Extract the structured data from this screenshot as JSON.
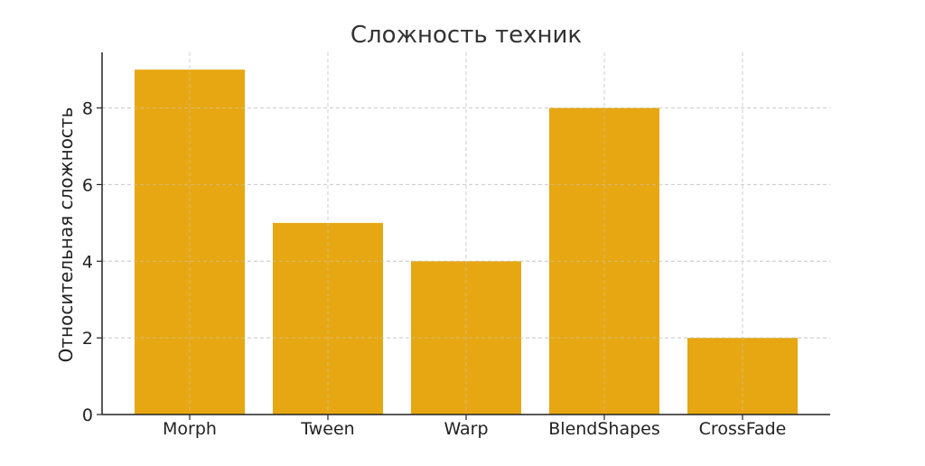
{
  "chart_data": {
    "type": "bar",
    "title": "Сложность техник",
    "xlabel": "",
    "ylabel": "Относительная сложность",
    "categories": [
      "Morph",
      "Tween",
      "Warp",
      "BlendShapes",
      "CrossFade"
    ],
    "values": [
      9,
      5,
      4,
      8,
      2
    ],
    "ylim": [
      0,
      9.45
    ],
    "yticks": [
      0,
      2,
      4,
      6,
      8
    ],
    "grid": true,
    "bar_color": "#E5A000"
  }
}
